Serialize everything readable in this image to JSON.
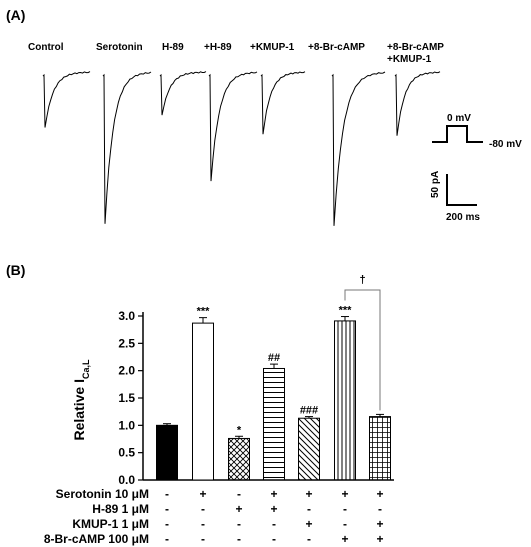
{
  "panel_a": {
    "label": "(A)",
    "traces": [
      "Control",
      "Serotonin",
      "H-89",
      "+H-89",
      "+KMUP-1",
      "+8-Br-cAMP",
      "+8-Br-cAMP +KMUP-1"
    ],
    "trace_labels": [
      {
        "lines": [
          "Control"
        ]
      },
      {
        "lines": [
          "Serotonin"
        ]
      },
      {
        "lines": [
          "H-89"
        ]
      },
      {
        "lines": [
          "+H-89"
        ]
      },
      {
        "lines": [
          "+KMUP-1"
        ]
      },
      {
        "lines": [
          "+8-Br-cAMP"
        ]
      },
      {
        "lines": [
          "+8-Br-cAMP",
          "+KMUP-1"
        ]
      }
    ],
    "peak_current_relative": [
      1.0,
      2.87,
      0.76,
      2.04,
      1.13,
      2.91,
      1.16
    ],
    "protocol": {
      "holding": "-80 mV",
      "step": "0 mV"
    },
    "scale_bar": {
      "current": "50 pA",
      "time": "200 ms"
    }
  },
  "chart_data": {
    "type": "bar",
    "panel_label": "(B)",
    "ylabel_main": "Relative I",
    "ylabel_sub": "Ca,L",
    "ylim": [
      0,
      3.0
    ],
    "yticks": [
      "0.0",
      "0.5",
      "1.0",
      "1.5",
      "2.0",
      "2.5",
      "3.0"
    ],
    "categories": [
      "Control",
      "Serotonin",
      "H-89",
      "Serotonin+H-89",
      "Serotonin+KMUP-1",
      "Serotonin+8-Br-cAMP",
      "Serotonin+8-Br-cAMP+KMUP-1"
    ],
    "values": [
      1.0,
      2.87,
      0.76,
      2.04,
      1.13,
      2.91,
      1.16
    ],
    "errors": [
      0.03,
      0.1,
      0.04,
      0.08,
      0.03,
      0.08,
      0.04
    ],
    "fills": [
      "solid-black",
      "white",
      "crosshatch",
      "horizontal-lines",
      "diagonal-lines",
      "vertical-lines",
      "grid"
    ],
    "significance": [
      "",
      "***",
      "*",
      "##",
      "###",
      "***",
      ""
    ],
    "bracket": {
      "from": 5,
      "to": 6,
      "label": "†"
    },
    "conditions": [
      {
        "label": "Serotonin 10 μM",
        "signs": [
          "-",
          "+",
          "-",
          "+",
          "+",
          "+",
          "+"
        ]
      },
      {
        "label": "H-89 1 μM",
        "signs": [
          "-",
          "-",
          "+",
          "+",
          "-",
          "-",
          "-"
        ]
      },
      {
        "label": "KMUP-1 1 μM",
        "signs": [
          "-",
          "-",
          "-",
          "-",
          "+",
          "-",
          "+"
        ]
      },
      {
        "label": "8-Br-cAMP 100 μM",
        "signs": [
          "-",
          "-",
          "-",
          "-",
          "-",
          "+",
          "+"
        ]
      }
    ]
  }
}
